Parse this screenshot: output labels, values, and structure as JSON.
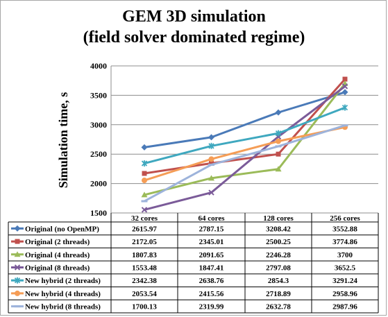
{
  "chart_data": {
    "type": "line",
    "title": "GEM 3D simulation",
    "subtitle": "(field solver dominated regime)",
    "xlabel": "",
    "ylabel": "Simulation time, s",
    "categories": [
      "32 cores",
      "64 cores",
      "128 cores",
      "256 cores"
    ],
    "ylim": [
      1500,
      4000
    ],
    "yticks": [
      "1500",
      "2000",
      "2500",
      "3000",
      "3500",
      "4000"
    ],
    "grid": true,
    "legend": "data-table",
    "series": [
      {
        "name": "Original (no OpenMP)",
        "color": "#4a7ab8",
        "marker": "diamond",
        "values": [
          2615.97,
          2787.15,
          3208.42,
          3552.88
        ],
        "labels": [
          "2615.97",
          "2787.15",
          "3208.42",
          "3552.88"
        ]
      },
      {
        "name": "Original (2 threads)",
        "color": "#c0504d",
        "marker": "square",
        "values": [
          2172.05,
          2345.01,
          2500.25,
          3774.86
        ],
        "labels": [
          "2172.05",
          "2345.01",
          "2500.25",
          "3774.86"
        ]
      },
      {
        "name": "Original (4 threads)",
        "color": "#9bbb59",
        "marker": "triangle",
        "values": [
          1807.83,
          2091.65,
          2246.28,
          3700
        ],
        "labels": [
          "1807.83",
          "2091.65",
          "2246.28",
          "3700"
        ]
      },
      {
        "name": "Original (8 threads)",
        "color": "#7b5b99",
        "marker": "x",
        "values": [
          1553.48,
          1847.41,
          2797.08,
          3652.5
        ],
        "labels": [
          "1553.48",
          "1847.41",
          "2797.08",
          "3652.5"
        ]
      },
      {
        "name": "New hybrid (2 threads)",
        "color": "#3fa8bf",
        "marker": "star",
        "values": [
          2342.38,
          2638.76,
          2854.3,
          3291.24
        ],
        "labels": [
          "2342.38",
          "2638.76",
          "2854.3",
          "3291.24"
        ]
      },
      {
        "name": "New hybrid (4 threads)",
        "color": "#f59d56",
        "marker": "circle",
        "values": [
          2053.54,
          2415.56,
          2718.89,
          2958.96
        ],
        "labels": [
          "2053.54",
          "2415.56",
          "2718.89",
          "2958.96"
        ]
      },
      {
        "name": "New hybrid (8 threads)",
        "color": "#9db3db",
        "marker": "dash",
        "values": [
          1700.13,
          2319.99,
          2632.78,
          2987.96
        ],
        "labels": [
          "1700.13",
          "2319.99",
          "2632.78",
          "2987.96"
        ]
      }
    ]
  }
}
